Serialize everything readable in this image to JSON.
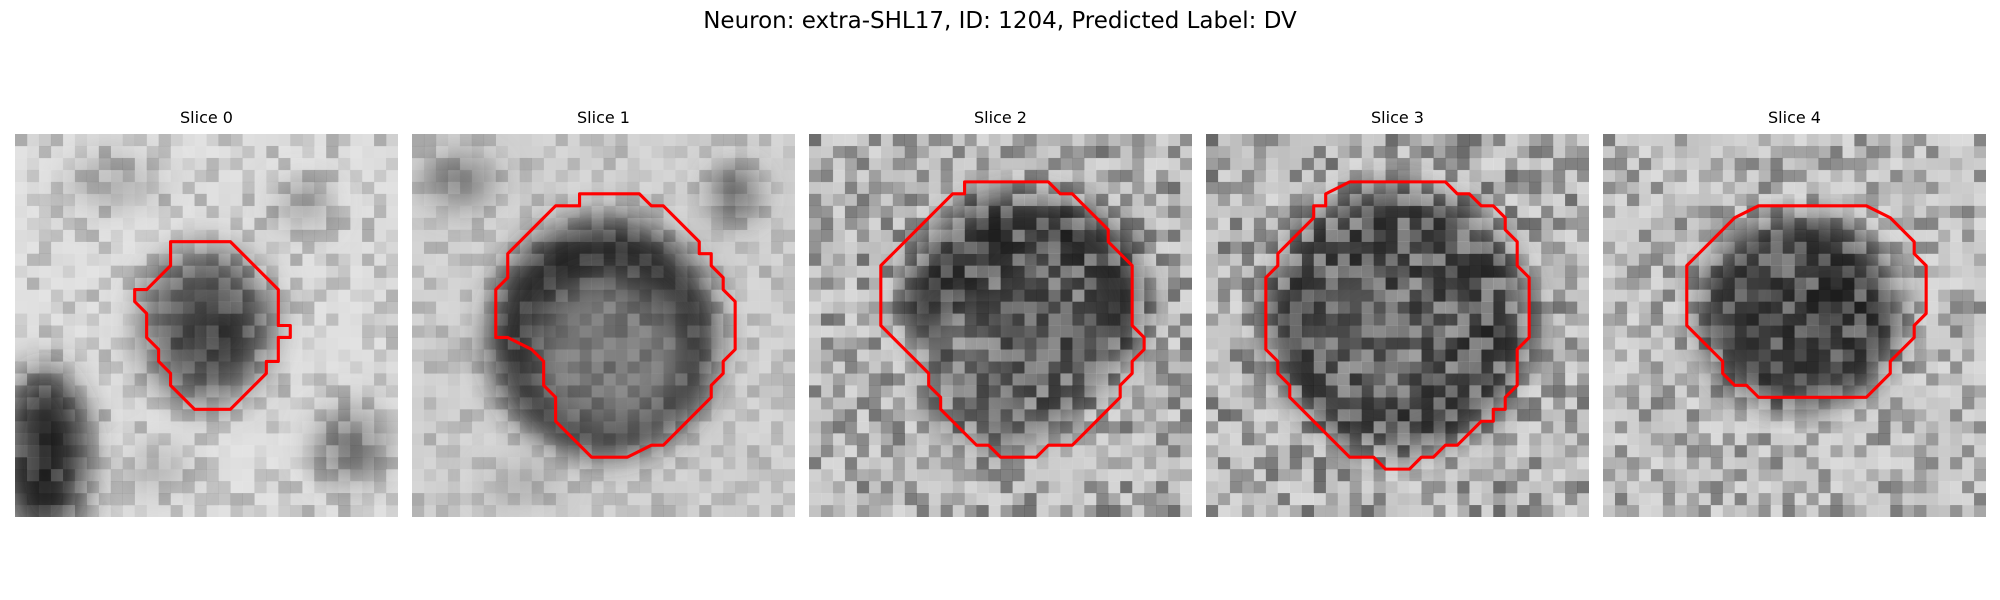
{
  "figure": {
    "title": "Neuron: extra-SHL17, ID: 1204, Predicted Label: DV",
    "outline_color": "#ff0000",
    "colormap": "gray"
  },
  "panels": [
    {
      "title": "Slice 0"
    },
    {
      "title": "Slice 1"
    },
    {
      "title": "Slice 2"
    },
    {
      "title": "Slice 3"
    },
    {
      "title": "Slice 4"
    }
  ]
}
